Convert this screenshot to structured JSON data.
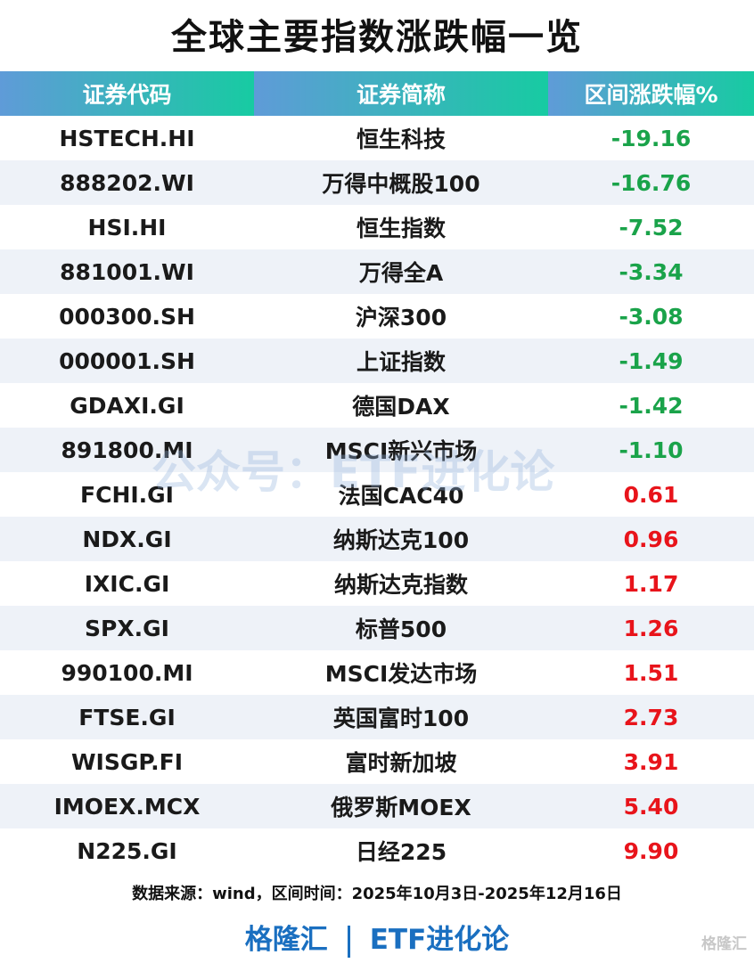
{
  "title": "全球主要指数涨跌幅一览",
  "chart_data": {
    "type": "table",
    "columns": [
      "证券代码",
      "证券简称",
      "区间涨跌幅%"
    ],
    "rows": [
      [
        "HSTECH.HI",
        "恒生科技",
        "-19.16"
      ],
      [
        "888202.WI",
        "万得中概股100",
        "-16.76"
      ],
      [
        "HSI.HI",
        "恒生指数",
        "-7.52"
      ],
      [
        "881001.WI",
        "万得全A",
        "-3.34"
      ],
      [
        "000300.SH",
        "沪深300",
        "-3.08"
      ],
      [
        "000001.SH",
        "上证指数",
        "-1.49"
      ],
      [
        "GDAXI.GI",
        "德国DAX",
        "-1.42"
      ],
      [
        "891800.MI",
        "MSCI新兴市场",
        "-1.10"
      ],
      [
        "FCHI.GI",
        "法国CAC40",
        "0.61"
      ],
      [
        "NDX.GI",
        "纳斯达克100",
        "0.96"
      ],
      [
        "IXIC.GI",
        "纳斯达克指数",
        "1.17"
      ],
      [
        "SPX.GI",
        "标普500",
        "1.26"
      ],
      [
        "990100.MI",
        "MSCI发达市场",
        "1.51"
      ],
      [
        "FTSE.GI",
        "英国富时100",
        "2.73"
      ],
      [
        "WISGP.FI",
        "富时新加坡",
        "3.91"
      ],
      [
        "IMOEX.MCX",
        "俄罗斯MOEX",
        "5.40"
      ],
      [
        "N225.GI",
        "日经225",
        "9.90"
      ]
    ],
    "colors": {
      "negative": "#1aa34a",
      "positive": "#e8141b",
      "header_start": "#5f9bd8",
      "header_end": "#17cba2"
    }
  },
  "source": "数据来源：wind，区间时间：2025年10月3日-2025年12月16日",
  "brand": {
    "left": "格隆汇",
    "right": "ETF进化论"
  },
  "watermark": "公众号：ETF进化论",
  "corner_logo": "格隆汇"
}
